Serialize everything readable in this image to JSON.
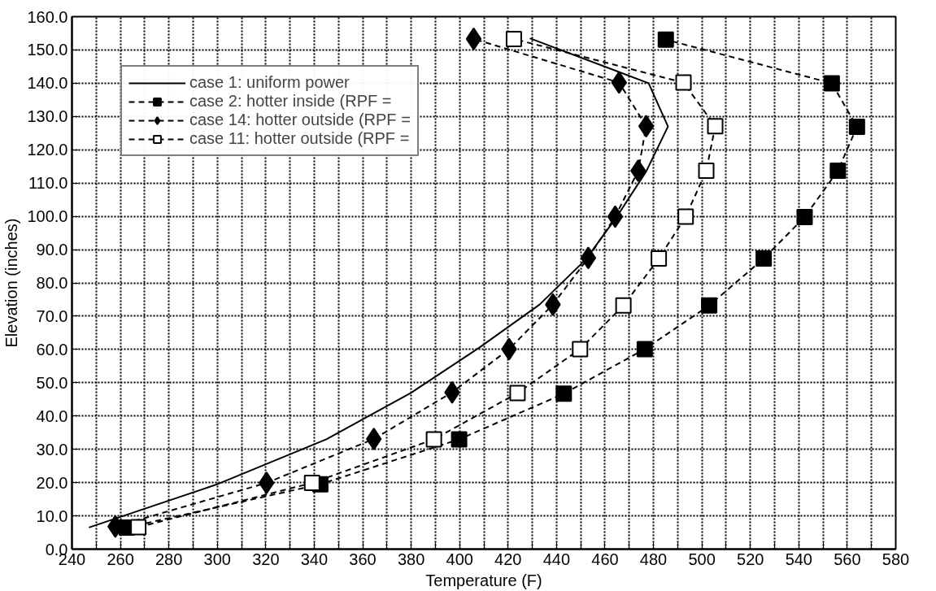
{
  "chart_data": {
    "type": "line",
    "xlabel": "Temperature (F)",
    "ylabel": "Elevation (inches)",
    "xlim": [
      240,
      580
    ],
    "ylim": [
      0,
      160
    ],
    "xticks": [
      240,
      {
        "value": 250,
        "label": null
      },
      260,
      {
        "value": 270,
        "label": null
      },
      280,
      {
        "value": 290,
        "label": null
      },
      300,
      {
        "value": 310,
        "label": null
      },
      320,
      {
        "value": 330,
        "label": null
      },
      340,
      {
        "value": 350,
        "label": null
      },
      360,
      {
        "value": 370,
        "label": null
      },
      380,
      {
        "value": 390,
        "label": null
      },
      400,
      {
        "value": 410,
        "label": null
      },
      420,
      {
        "value": 430,
        "label": null
      },
      440,
      {
        "value": 450,
        "label": null
      },
      460,
      {
        "value": 470,
        "label": null
      },
      480,
      {
        "value": 490,
        "label": null
      },
      500,
      {
        "value": 510,
        "label": null
      },
      520,
      {
        "value": 530,
        "label": null
      },
      540,
      {
        "value": 550,
        "label": null
      },
      560,
      {
        "value": 570,
        "label": null
      },
      580
    ],
    "yticks": [
      {
        "value": 0,
        "label": "0.0"
      },
      {
        "value": 10,
        "label": "10.0"
      },
      {
        "value": 20,
        "label": "20.0"
      },
      {
        "value": 30,
        "label": "30.0"
      },
      {
        "value": 40,
        "label": "40.0"
      },
      {
        "value": 50,
        "label": "50.0"
      },
      {
        "value": 60,
        "label": "60.0"
      },
      {
        "value": 70,
        "label": "70.0"
      },
      {
        "value": 80,
        "label": "80.0"
      },
      {
        "value": 90,
        "label": "90.0"
      },
      {
        "value": 100,
        "label": "100.0"
      },
      {
        "value": 110,
        "label": "110.0"
      },
      {
        "value": 120,
        "label": "120.0"
      },
      {
        "value": 130,
        "label": "130.0"
      },
      {
        "value": 140,
        "label": "140.0"
      },
      {
        "value": 150,
        "label": "150.0"
      },
      {
        "value": 160,
        "label": "160.0"
      }
    ],
    "grid": true,
    "legend": "top left",
    "series": [
      {
        "name": "case 1: uniform power",
        "color": "#000000",
        "marker": "none",
        "line_style": "solid",
        "x": [
          247,
          300,
          345,
          380,
          408,
          433,
          452,
          465,
          477,
          486,
          478,
          429
        ],
        "values": [
          6.5,
          19.5,
          33,
          47,
          60.5,
          73.5,
          87,
          100,
          113.5,
          127,
          140,
          153.5
        ]
      },
      {
        "name": "case 2: hotter inside (RPF =",
        "color": "#000000",
        "marker": "square",
        "line_style": "dashed",
        "x": [
          262.6,
          342.5,
          399.8,
          443,
          476.4,
          503,
          525.5,
          542.4,
          556.1,
          564,
          553.6,
          485.1
        ],
        "values": [
          6.5,
          19.5,
          33,
          46.7,
          60.1,
          73.2,
          87.3,
          99.8,
          113.7,
          126.9,
          140,
          153.1
        ]
      },
      {
        "name": "case 14: hotter outside (RPF =",
        "color": "#000000",
        "marker": "diamond",
        "line_style": "dashed",
        "x": [
          257.9,
          320.3,
          364.6,
          396.9,
          420.4,
          438.5,
          453.1,
          464.2,
          473.7,
          477,
          465.8,
          405.8
        ],
        "values": [
          6.8,
          19.9,
          33.1,
          47.1,
          60.1,
          73.5,
          87.5,
          99.9,
          113.7,
          127.1,
          140.2,
          153.3
        ]
      },
      {
        "name": "case 11: hotter outside (RPF =",
        "color": "#000000",
        "marker": "square_open",
        "line_style": "dashed",
        "x": [
          267.4,
          339.1,
          389.4,
          423.9,
          449.7,
          467.6,
          482.2,
          493.3,
          501.8,
          505.5,
          492.4,
          422.4
        ],
        "values": [
          6.6,
          19.9,
          33,
          46.9,
          60.1,
          73.2,
          87.3,
          99.9,
          113.7,
          127.1,
          140.2,
          153.3
        ]
      }
    ]
  }
}
